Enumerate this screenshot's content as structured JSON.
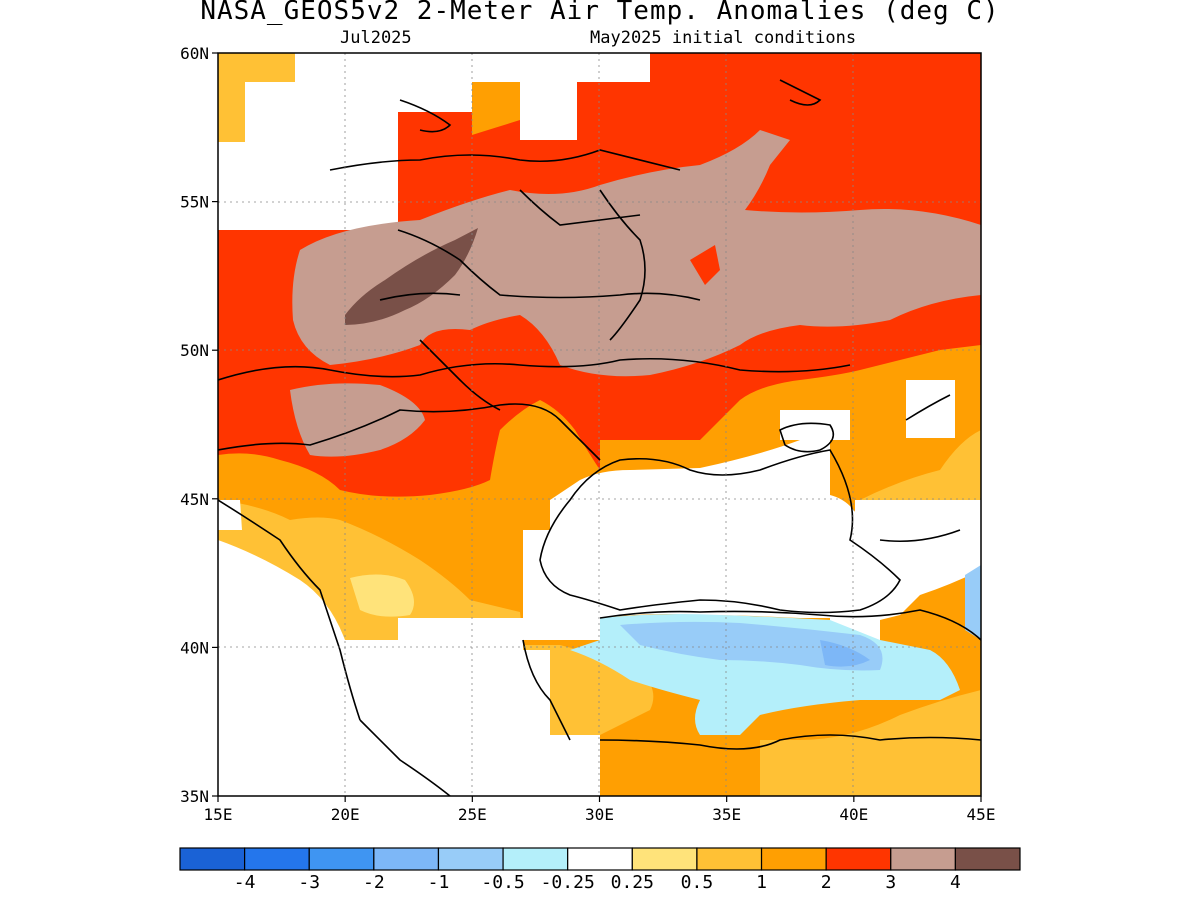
{
  "title": "NASA_GEOS5v2 2-Meter Air Temp. Anomalies (deg C)",
  "subtitle_left": "Jul2025",
  "subtitle_right": "May2025 initial conditions",
  "map": {
    "lon_ticks": [
      "15E",
      "20E",
      "25E",
      "30E",
      "35E",
      "40E",
      "45E"
    ],
    "lat_ticks": [
      "60N",
      "55N",
      "50N",
      "45N",
      "40N",
      "35N"
    ],
    "gridlines": true
  },
  "colorbar": {
    "colors": [
      "#1a62d6",
      "#2476ec",
      "#3f95f2",
      "#7db7f7",
      "#98ccf8",
      "#b4effa",
      "#ffffff",
      "#ffe37a",
      "#ffc135",
      "#ff9f02",
      "#ff3500",
      "#c69d90",
      "#795048"
    ],
    "labels": [
      "-4",
      "-3",
      "-2",
      "-1",
      "-0.5",
      "-0.25",
      "0.25",
      "0.5",
      "1",
      "2",
      "3",
      "4"
    ]
  }
}
